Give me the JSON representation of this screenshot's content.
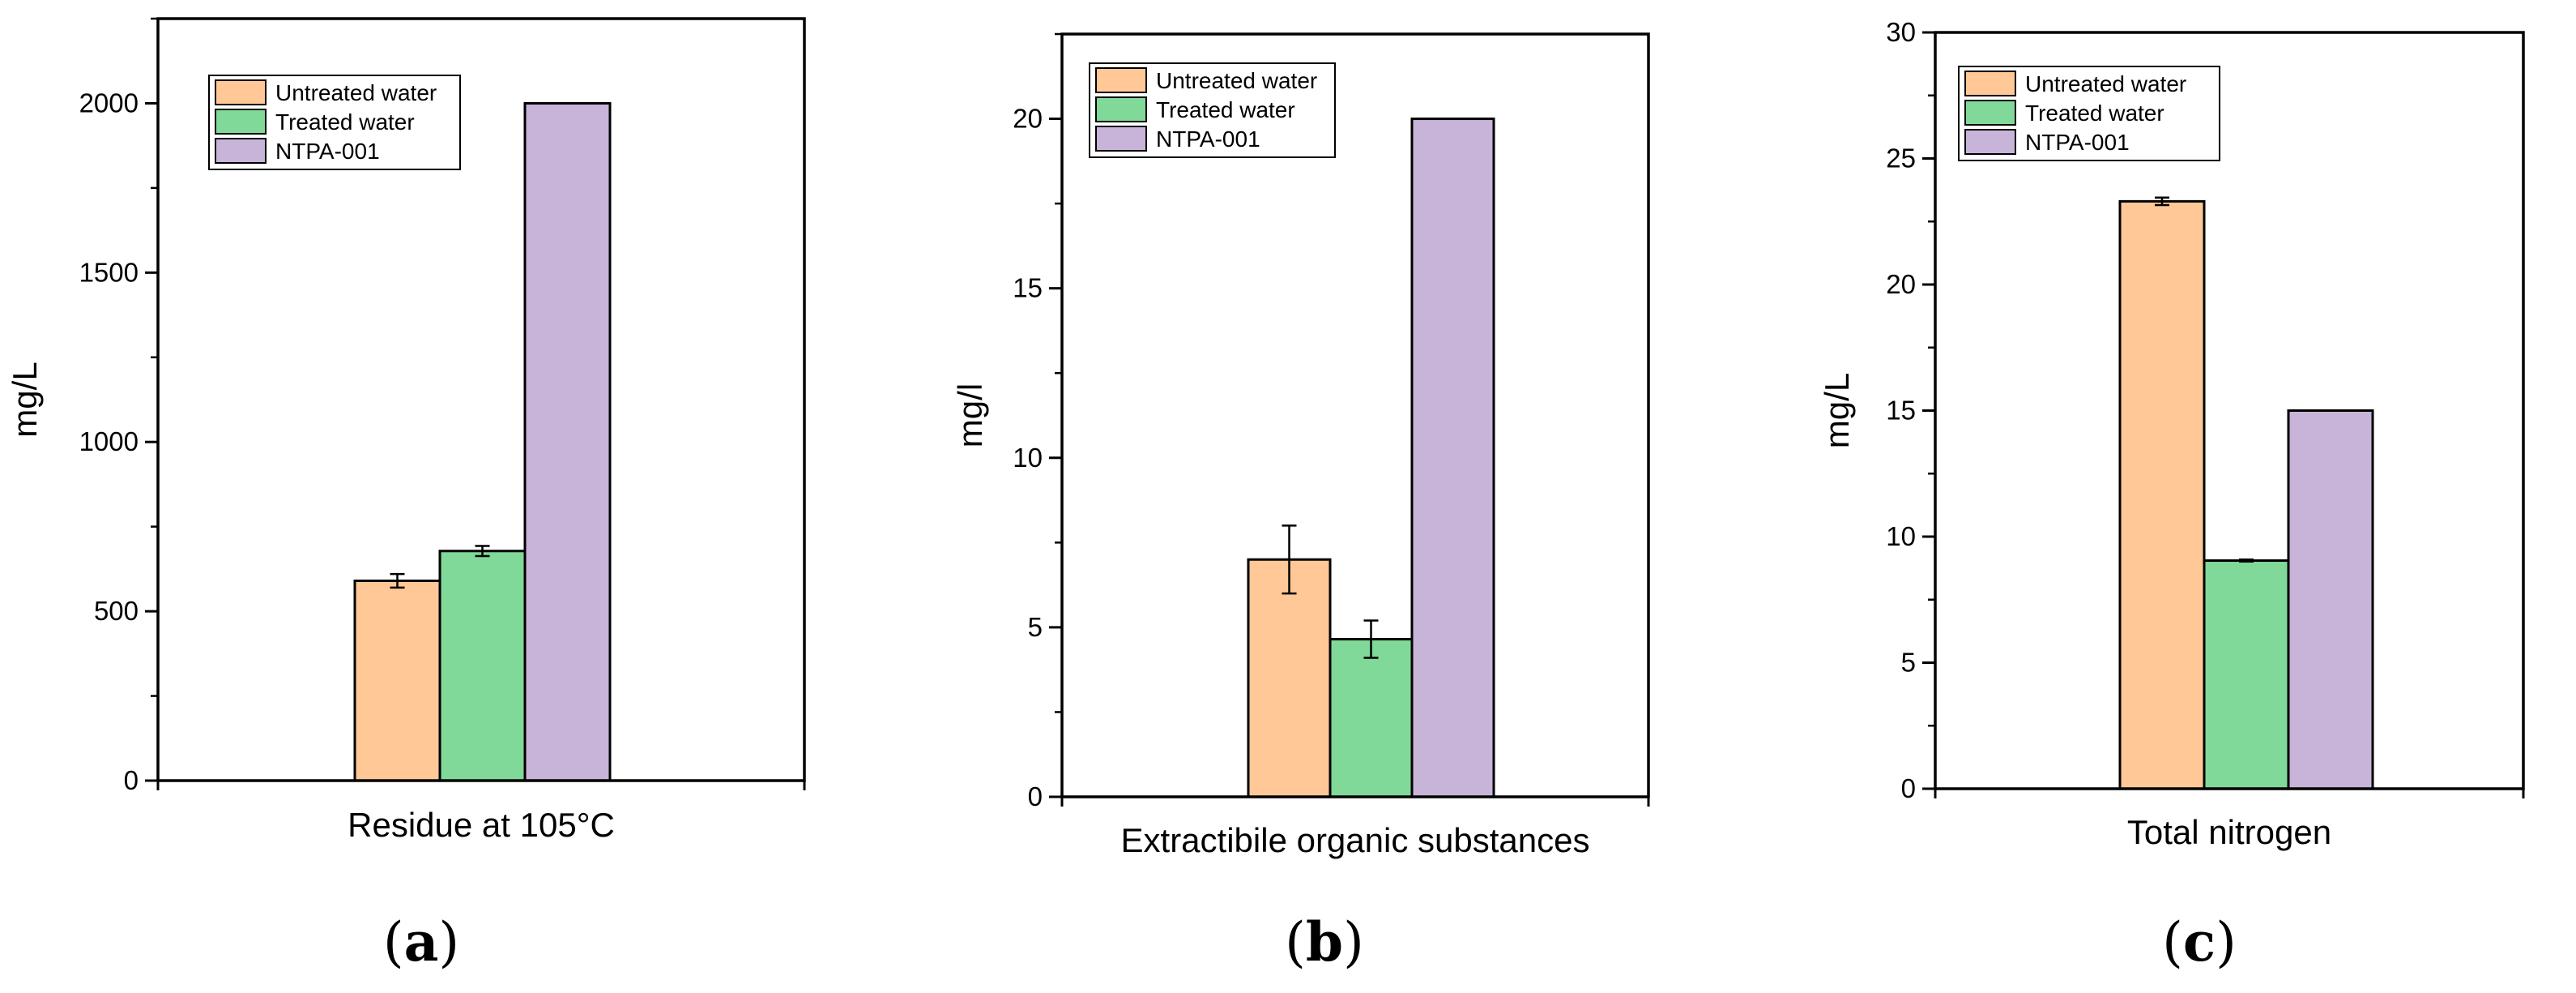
{
  "colors": {
    "untreated": "#FFC896",
    "treated": "#80D998",
    "ntpa": "#C8B4D8",
    "stroke": "#000000"
  },
  "chart_data": [
    {
      "type": "bar",
      "panel_label": "a",
      "categories": [
        "Residue at 105°C"
      ],
      "xlabel": "Residue at 105°C",
      "ylabel": "mg/L",
      "ylim": [
        0,
        2250
      ],
      "yticks": [
        0,
        500,
        1000,
        1500,
        2000
      ],
      "legend_position": "top-left",
      "series": [
        {
          "name": "Untreated water",
          "color_key": "untreated",
          "values": [
            590
          ],
          "errors": [
            20
          ]
        },
        {
          "name": "Treated water",
          "color_key": "treated",
          "values": [
            678
          ],
          "errors": [
            15
          ]
        },
        {
          "name": "NTPA-001",
          "color_key": "ntpa",
          "values": [
            2000
          ],
          "errors": [
            0
          ]
        }
      ]
    },
    {
      "type": "bar",
      "panel_label": "b",
      "categories": [
        "Extractibile organic substances"
      ],
      "xlabel": "Extractibile organic substances",
      "ylabel": "mg/l",
      "ylim": [
        0,
        22.5
      ],
      "yticks": [
        0,
        5,
        10,
        15,
        20
      ],
      "legend_position": "top-left",
      "series": [
        {
          "name": "Untreated water",
          "color_key": "untreated",
          "values": [
            7
          ],
          "errors": [
            1
          ]
        },
        {
          "name": "Treated water",
          "color_key": "treated",
          "values": [
            4.65
          ],
          "errors": [
            0.55
          ]
        },
        {
          "name": "NTPA-001",
          "color_key": "ntpa",
          "values": [
            20
          ],
          "errors": [
            0
          ]
        }
      ]
    },
    {
      "type": "bar",
      "panel_label": "c",
      "categories": [
        "Total nitrogen"
      ],
      "xlabel": "Total nitrogen",
      "ylabel": "mg/L",
      "ylim": [
        0,
        30
      ],
      "yticks": [
        0,
        5,
        10,
        15,
        20,
        25,
        30
      ],
      "legend_position": "top-left",
      "series": [
        {
          "name": "Untreated water",
          "color_key": "untreated",
          "values": [
            23.3
          ],
          "errors": [
            0.15
          ]
        },
        {
          "name": "Treated water",
          "color_key": "treated",
          "values": [
            9.05
          ],
          "errors": [
            0.04
          ]
        },
        {
          "name": "NTPA-001",
          "color_key": "ntpa",
          "values": [
            15
          ],
          "errors": [
            0
          ]
        }
      ]
    }
  ]
}
